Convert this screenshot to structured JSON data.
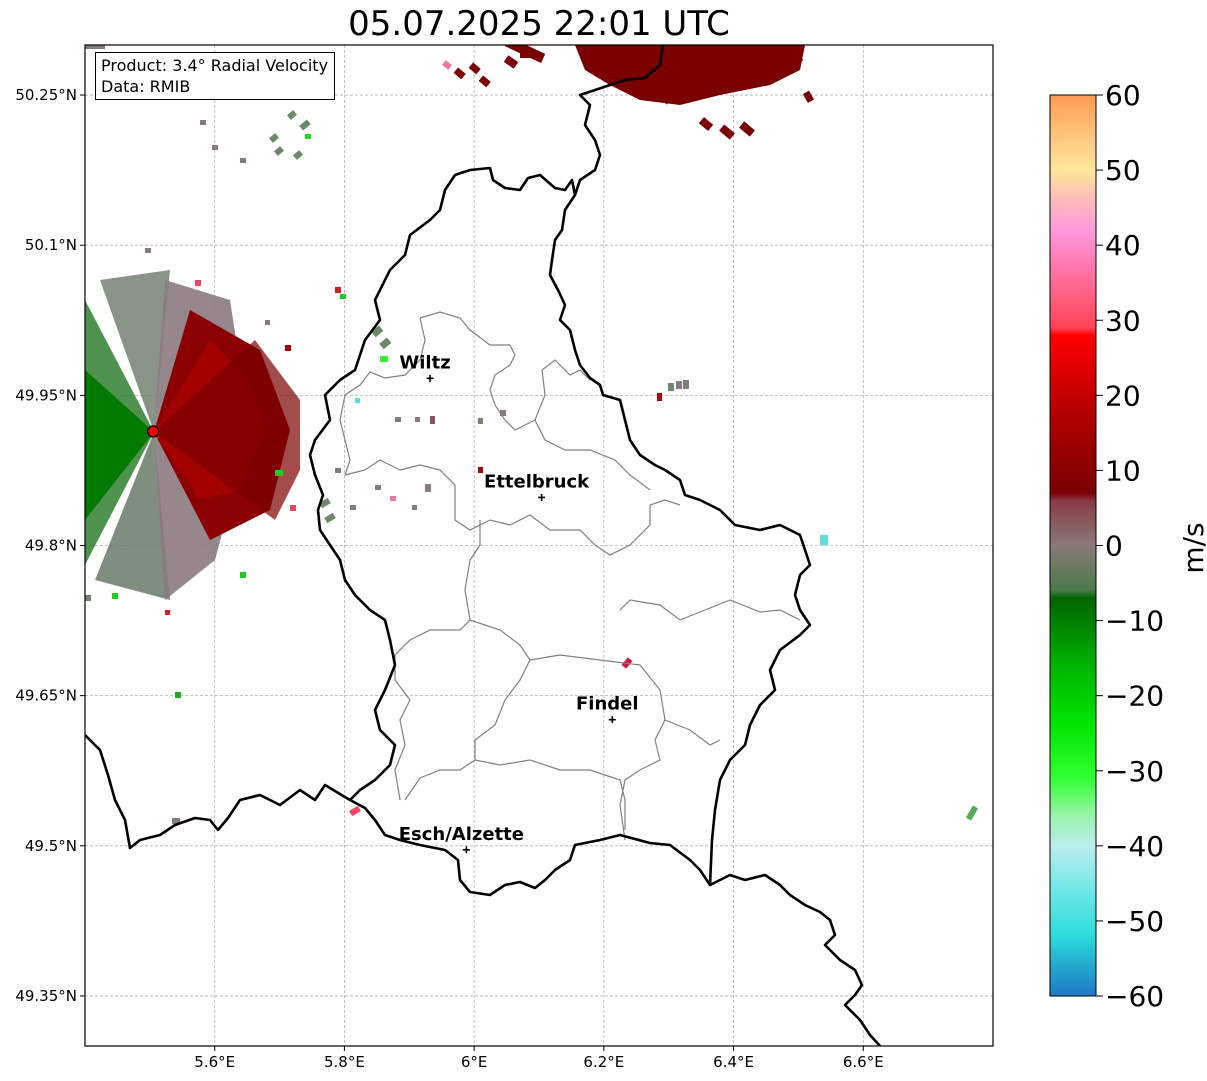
{
  "title": "05.07.2025 22:01 UTC",
  "info": {
    "product": "Product: 3.4° Radial Velocity",
    "source": "Data: RMIB"
  },
  "map": {
    "lon_range": [
      5.4,
      6.8
    ],
    "lat_range": [
      49.3,
      50.3
    ],
    "x_ticks": [
      {
        "lon": 5.6,
        "label": "5.6°E"
      },
      {
        "lon": 5.8,
        "label": "5.8°E"
      },
      {
        "lon": 6.0,
        "label": "6°E"
      },
      {
        "lon": 6.2,
        "label": "6.2°E"
      },
      {
        "lon": 6.4,
        "label": "6.4°E"
      },
      {
        "lon": 6.6,
        "label": "6.6°E"
      }
    ],
    "y_ticks": [
      {
        "lat": 50.25,
        "label": "50.25°N"
      },
      {
        "lat": 50.1,
        "label": "50.1°N"
      },
      {
        "lat": 49.95,
        "label": "49.95°N"
      },
      {
        "lat": 49.8,
        "label": "49.8°N"
      },
      {
        "lat": 49.65,
        "label": "49.65°N"
      },
      {
        "lat": 49.5,
        "label": "49.5°N"
      },
      {
        "lat": 49.35,
        "label": "49.35°N"
      }
    ],
    "radar_site": {
      "lon": 5.505,
      "lat": 49.914
    },
    "cities": [
      {
        "name": "Wiltz",
        "lon": 5.932,
        "lat": 49.967
      },
      {
        "name": "Ettelbruck",
        "lon": 6.104,
        "lat": 49.848
      },
      {
        "name": "Findel",
        "lon": 6.213,
        "lat": 49.626
      },
      {
        "name": "Esch/Alzette",
        "lon": 5.988,
        "lat": 49.496
      }
    ]
  },
  "colorbar": {
    "label": "m/s",
    "range": [
      -60,
      60
    ],
    "ticks": [
      {
        "value": 60,
        "label": "60"
      },
      {
        "value": 50,
        "label": "50"
      },
      {
        "value": 40,
        "label": "40"
      },
      {
        "value": 30,
        "label": "30"
      },
      {
        "value": 20,
        "label": "20"
      },
      {
        "value": 10,
        "label": "10"
      },
      {
        "value": 0,
        "label": "0"
      },
      {
        "value": -10,
        "label": "−10"
      },
      {
        "value": -20,
        "label": "−20"
      },
      {
        "value": -30,
        "label": "−30"
      },
      {
        "value": -40,
        "label": "−40"
      },
      {
        "value": -50,
        "label": "−50"
      },
      {
        "value": -60,
        "label": "−60"
      }
    ],
    "stops": [
      {
        "value": -60,
        "color": "#1f78c8"
      },
      {
        "value": -56,
        "color": "#22a8cc"
      },
      {
        "value": -52,
        "color": "#2ddcdc"
      },
      {
        "value": -46,
        "color": "#6ee6e6"
      },
      {
        "value": -40,
        "color": "#bbeeee"
      },
      {
        "value": -36,
        "color": "#99f2aa"
      },
      {
        "value": -31,
        "color": "#33ff33"
      },
      {
        "value": -24,
        "color": "#00e600"
      },
      {
        "value": -16,
        "color": "#00b400"
      },
      {
        "value": -7,
        "color": "#006400"
      },
      {
        "value": -6,
        "color": "#4a7a4a"
      },
      {
        "value": 0,
        "color": "#8a7a78"
      },
      {
        "value": 6,
        "color": "#8a3a44"
      },
      {
        "value": 7,
        "color": "#7a0000"
      },
      {
        "value": 17,
        "color": "#b00000"
      },
      {
        "value": 28,
        "color": "#ff0000"
      },
      {
        "value": 29,
        "color": "#ff4455"
      },
      {
        "value": 37,
        "color": "#ff77aa"
      },
      {
        "value": 42,
        "color": "#ff99dd"
      },
      {
        "value": 46,
        "color": "#ffbbbb"
      },
      {
        "value": 50,
        "color": "#ffe699"
      },
      {
        "value": 55,
        "color": "#ffc27a"
      },
      {
        "value": 60,
        "color": "#ff9a50"
      }
    ]
  }
}
